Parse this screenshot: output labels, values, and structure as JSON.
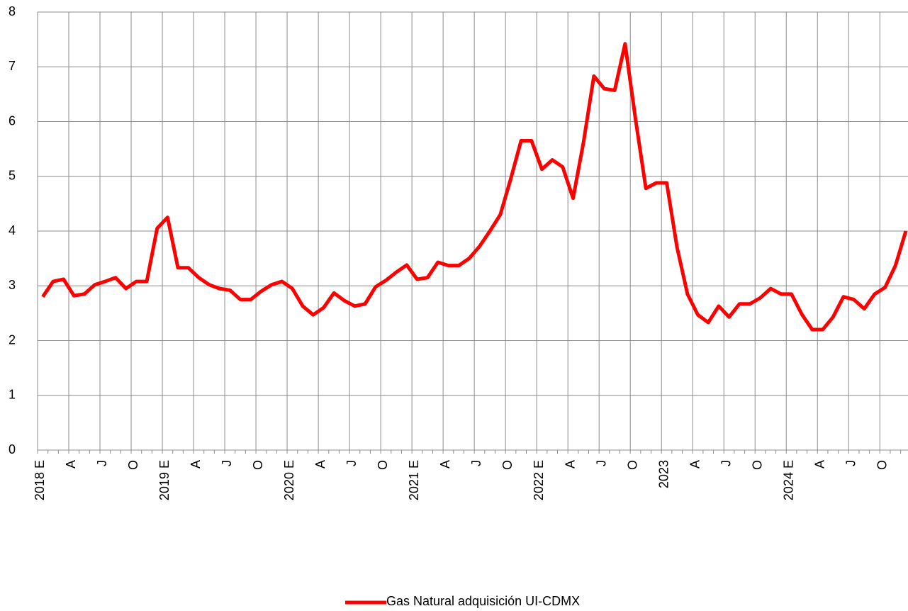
{
  "chart_data": {
    "type": "line",
    "categories": [
      "2018 E",
      null,
      null,
      "A",
      null,
      null,
      "J",
      null,
      null,
      "O",
      null,
      null,
      "2019 E",
      null,
      null,
      "A",
      null,
      null,
      "J",
      null,
      null,
      "O",
      null,
      null,
      "2020 E",
      null,
      null,
      "A",
      null,
      null,
      "J",
      null,
      null,
      "O",
      null,
      null,
      "2021 E",
      null,
      null,
      "A",
      null,
      null,
      "J",
      null,
      null,
      "O",
      null,
      null,
      "2022 E",
      null,
      null,
      "A",
      null,
      null,
      "J",
      null,
      null,
      "O",
      null,
      null,
      "2023",
      null,
      null,
      "A",
      null,
      null,
      "J",
      null,
      null,
      "O",
      null,
      null,
      "2024 E",
      null,
      null,
      "A",
      null,
      null,
      "J",
      null,
      null,
      "O",
      null,
      null
    ],
    "series": [
      {
        "name": "Gas Natural adquisición UI-CDMX",
        "color": "#ff0000",
        "values": [
          2.8,
          3.08,
          3.12,
          2.82,
          2.85,
          3.02,
          3.08,
          3.15,
          2.95,
          3.08,
          3.08,
          4.05,
          4.25,
          3.33,
          3.33,
          3.15,
          3.02,
          2.95,
          2.92,
          2.75,
          2.75,
          2.9,
          3.02,
          3.08,
          2.95,
          2.63,
          2.47,
          2.6,
          2.87,
          2.73,
          2.63,
          2.67,
          2.98,
          3.1,
          3.25,
          3.38,
          3.12,
          3.15,
          3.43,
          3.37,
          3.37,
          3.5,
          3.72,
          4.0,
          4.3,
          4.95,
          5.65,
          5.65,
          5.13,
          5.3,
          5.17,
          4.6,
          5.62,
          6.83,
          6.6,
          6.57,
          7.42,
          6.05,
          4.78,
          4.88,
          4.88,
          3.7,
          2.85,
          2.47,
          2.33,
          2.63,
          2.43,
          2.67,
          2.67,
          2.78,
          2.95,
          2.85,
          2.85,
          2.48,
          2.2,
          2.2,
          2.43,
          2.8,
          2.75,
          2.58,
          2.85,
          2.97,
          3.37,
          4.0
        ]
      }
    ],
    "ylim": [
      0,
      8
    ],
    "yticks": [
      0,
      1,
      2,
      3,
      4,
      5,
      6,
      7,
      8
    ],
    "grid": true
  }
}
